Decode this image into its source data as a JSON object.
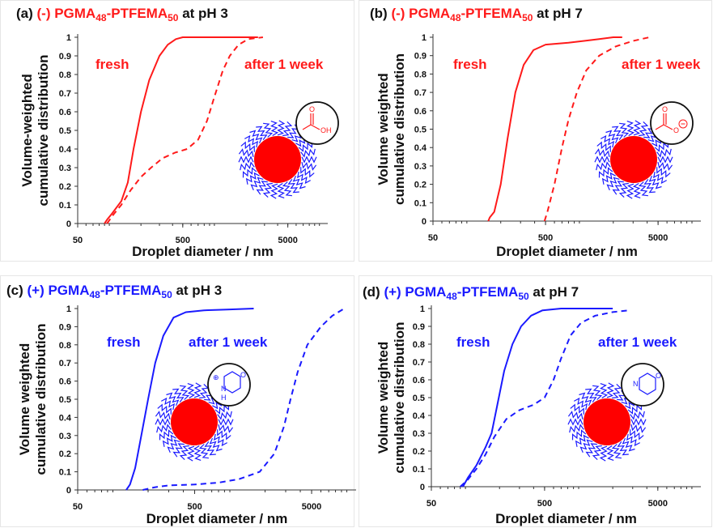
{
  "colors": {
    "red": "#ff1a1a",
    "blue": "#1a1aff",
    "black": "#111111"
  },
  "chart_data": [
    {
      "type": "line",
      "panel_label": "(a)",
      "title_prefix": "(-) PGMA",
      "sub1": "48",
      "title_mid": "-PTFEMA",
      "sub2": "50",
      "title_suffix": " at pH 3",
      "color": "#ff1a1a",
      "xlabel": "Droplet diameter / nm",
      "ylabel_lines": [
        "Volume-weighted",
        "cumulative distribution"
      ],
      "x_scale": "log",
      "xlim": [
        50,
        12000
      ],
      "ylim": [
        0,
        1
      ],
      "x_ticks": [
        "50",
        "500",
        "5000"
      ],
      "y_ticks": [
        "0",
        "0.1",
        "0.2",
        "0.3",
        "0.4",
        "0.5",
        "0.6",
        "0.7",
        "0.8",
        "0.9",
        "1"
      ],
      "annotations": [
        "fresh",
        "after 1 week"
      ],
      "chem_icon": "carboxylic-acid",
      "chem_labels": [
        "O",
        "OH"
      ],
      "series": [
        {
          "style": "solid",
          "points": [
            [
              90,
              0
            ],
            [
              95,
              0.02
            ],
            [
              105,
              0.05
            ],
            [
              130,
              0.12
            ],
            [
              150,
              0.22
            ],
            [
              170,
              0.4
            ],
            [
              200,
              0.6
            ],
            [
              240,
              0.77
            ],
            [
              300,
              0.9
            ],
            [
              360,
              0.96
            ],
            [
              430,
              0.99
            ],
            [
              500,
              1
            ],
            [
              2000,
              1
            ],
            [
              2600,
              1
            ]
          ]
        },
        {
          "style": "dashed",
          "points": [
            [
              95,
              0
            ],
            [
              110,
              0.05
            ],
            [
              130,
              0.1
            ],
            [
              160,
              0.18
            ],
            [
              200,
              0.25
            ],
            [
              250,
              0.3
            ],
            [
              320,
              0.35
            ],
            [
              420,
              0.38
            ],
            [
              550,
              0.4
            ],
            [
              700,
              0.45
            ],
            [
              850,
              0.55
            ],
            [
              1000,
              0.68
            ],
            [
              1200,
              0.82
            ],
            [
              1400,
              0.9
            ],
            [
              1700,
              0.96
            ],
            [
              2100,
              0.99
            ],
            [
              2900,
              1
            ]
          ]
        }
      ]
    },
    {
      "type": "line",
      "panel_label": "(b)",
      "title_prefix": "(-) PGMA",
      "sub1": "48",
      "title_mid": "-PTFEMA",
      "sub2": "50",
      "title_suffix": " at pH 7",
      "color": "#ff1a1a",
      "xlabel": "Droplet diameter / nm",
      "ylabel_lines": [
        "Volume weighted",
        "cumulative distribution"
      ],
      "x_scale": "log",
      "xlim": [
        50,
        12000
      ],
      "ylim": [
        0,
        1
      ],
      "x_ticks": [
        "50",
        "500",
        "5000"
      ],
      "y_ticks": [
        "0",
        "0.1",
        "0.2",
        "0.3",
        "0.4",
        "0.5",
        "0.6",
        "0.7",
        "0.8",
        "0.9",
        "1"
      ],
      "annotations": [
        "fresh",
        "after 1 week"
      ],
      "chem_icon": "carboxylate",
      "chem_labels": [
        "O",
        "O"
      ],
      "series": [
        {
          "style": "solid",
          "points": [
            [
              155,
              0
            ],
            [
              160,
              0.02
            ],
            [
              175,
              0.05
            ],
            [
              200,
              0.2
            ],
            [
              230,
              0.45
            ],
            [
              270,
              0.7
            ],
            [
              320,
              0.85
            ],
            [
              390,
              0.93
            ],
            [
              500,
              0.96
            ],
            [
              800,
              0.97
            ],
            [
              1100,
              0.98
            ],
            [
              1500,
              0.99
            ],
            [
              2000,
              1
            ],
            [
              2400,
              1
            ]
          ]
        },
        {
          "style": "dashed",
          "points": [
            [
              490,
              0
            ],
            [
              520,
              0.05
            ],
            [
              600,
              0.2
            ],
            [
              700,
              0.4
            ],
            [
              800,
              0.55
            ],
            [
              950,
              0.7
            ],
            [
              1150,
              0.82
            ],
            [
              1500,
              0.9
            ],
            [
              2100,
              0.95
            ],
            [
              3000,
              0.98
            ],
            [
              4200,
              1
            ]
          ]
        }
      ]
    },
    {
      "type": "line",
      "panel_label": "(c)",
      "title_prefix": "(+) PGMA",
      "sub1": "48",
      "title_mid": "-PTFEMA",
      "sub2": "50",
      "title_suffix": " at pH 3",
      "color": "#1a1aff",
      "xlabel": "Droplet diameter / nm",
      "ylabel_lines": [
        "Volume weighted",
        "cumulative distribution"
      ],
      "x_scale": "log",
      "xlim": [
        50,
        12000
      ],
      "ylim": [
        0,
        1
      ],
      "x_ticks": [
        "50",
        "500",
        "5000"
      ],
      "y_ticks": [
        "0",
        "0.1",
        "0.2",
        "0.3",
        "0.4",
        "0.5",
        "0.6",
        "0.7",
        "0.8",
        "0.9",
        "1"
      ],
      "annotations": [
        "fresh",
        "after 1 week"
      ],
      "chem_icon": "protonated-morpholine",
      "chem_labels": [
        "⊕",
        "N",
        "H",
        "O"
      ],
      "series": [
        {
          "style": "solid",
          "points": [
            [
              130,
              0
            ],
            [
              140,
              0.03
            ],
            [
              155,
              0.12
            ],
            [
              175,
              0.3
            ],
            [
              200,
              0.5
            ],
            [
              230,
              0.7
            ],
            [
              270,
              0.85
            ],
            [
              330,
              0.95
            ],
            [
              420,
              0.98
            ],
            [
              600,
              0.99
            ],
            [
              1000,
              0.995
            ],
            [
              1600,
              1
            ]
          ]
        },
        {
          "style": "dashed",
          "points": [
            [
              180,
              0
            ],
            [
              230,
              0.015
            ],
            [
              300,
              0.025
            ],
            [
              500,
              0.03
            ],
            [
              800,
              0.04
            ],
            [
              1200,
              0.06
            ],
            [
              1800,
              0.1
            ],
            [
              2400,
              0.2
            ],
            [
              2900,
              0.35
            ],
            [
              3300,
              0.5
            ],
            [
              3800,
              0.65
            ],
            [
              4600,
              0.8
            ],
            [
              6000,
              0.9
            ],
            [
              7500,
              0.96
            ],
            [
              9500,
              1
            ]
          ]
        }
      ]
    },
    {
      "type": "line",
      "panel_label": "(d)",
      "title_prefix": "(+) PGMA",
      "sub1": "48",
      "title_mid": "-PTFEMA",
      "sub2": "50",
      "title_suffix": " at pH 7",
      "color": "#1a1aff",
      "xlabel": "Droplet diameter / nm",
      "ylabel_lines": [
        "Volume weighted",
        "cumulative distribution"
      ],
      "x_scale": "log",
      "xlim": [
        50,
        12000
      ],
      "ylim": [
        0,
        1
      ],
      "x_ticks": [
        "50",
        "500",
        "5000"
      ],
      "y_ticks": [
        "0",
        "0.1",
        "0.2",
        "0.3",
        "0.4",
        "0.5",
        "0.6",
        "0.7",
        "0.8",
        "0.9",
        "1"
      ],
      "annotations": [
        "fresh",
        "after 1 week"
      ],
      "chem_icon": "morpholine",
      "chem_labels": [
        "N",
        "O"
      ],
      "series": [
        {
          "style": "solid",
          "points": [
            [
              95,
              0
            ],
            [
              105,
              0.05
            ],
            [
              125,
              0.12
            ],
            [
              150,
              0.22
            ],
            [
              170,
              0.3
            ],
            [
              190,
              0.45
            ],
            [
              220,
              0.65
            ],
            [
              260,
              0.8
            ],
            [
              310,
              0.9
            ],
            [
              380,
              0.96
            ],
            [
              480,
              0.99
            ],
            [
              700,
              1
            ],
            [
              1500,
              1
            ],
            [
              2000,
              1
            ]
          ]
        },
        {
          "style": "dashed",
          "points": [
            [
              90,
              0
            ],
            [
              105,
              0.04
            ],
            [
              125,
              0.1
            ],
            [
              150,
              0.18
            ],
            [
              180,
              0.28
            ],
            [
              230,
              0.38
            ],
            [
              300,
              0.43
            ],
            [
              400,
              0.46
            ],
            [
              500,
              0.5
            ],
            [
              600,
              0.6
            ],
            [
              700,
              0.72
            ],
            [
              850,
              0.85
            ],
            [
              1050,
              0.92
            ],
            [
              1400,
              0.96
            ],
            [
              2000,
              0.98
            ],
            [
              2800,
              0.99
            ]
          ]
        }
      ]
    }
  ]
}
